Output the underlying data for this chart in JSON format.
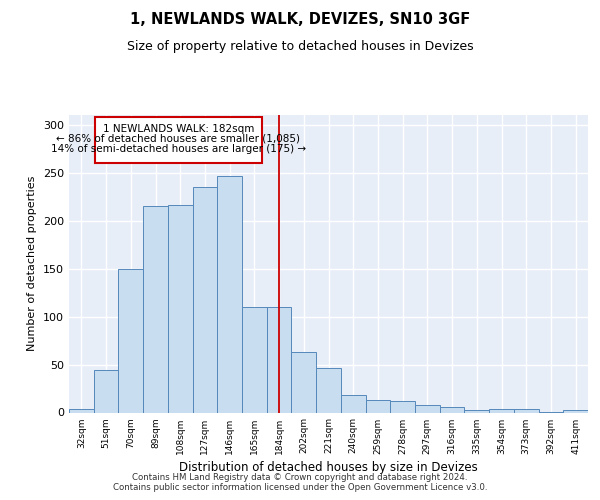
{
  "title": "1, NEWLANDS WALK, DEVIZES, SN10 3GF",
  "subtitle": "Size of property relative to detached houses in Devizes",
  "xlabel": "Distribution of detached houses by size in Devizes",
  "ylabel": "Number of detached properties",
  "bar_color": "#c8ddf0",
  "bar_edge_color": "#5588bb",
  "background_color": "#e8eef8",
  "grid_color": "#d0d8e8",
  "categories": [
    "32sqm",
    "51sqm",
    "70sqm",
    "89sqm",
    "108sqm",
    "127sqm",
    "146sqm",
    "165sqm",
    "184sqm",
    "202sqm",
    "221sqm",
    "240sqm",
    "259sqm",
    "278sqm",
    "297sqm",
    "316sqm",
    "335sqm",
    "354sqm",
    "373sqm",
    "392sqm",
    "411sqm"
  ],
  "values": [
    4,
    44,
    150,
    215,
    216,
    235,
    246,
    110,
    110,
    63,
    46,
    18,
    13,
    12,
    8,
    6,
    3,
    4,
    4,
    1,
    3
  ],
  "vline_position": 8.0,
  "vline_color": "#cc0000",
  "property_label": "1 NEWLANDS WALK: 182sqm",
  "annotation_line1": "← 86% of detached houses are smaller (1,085)",
  "annotation_line2": "14% of semi-detached houses are larger (175) →",
  "box_edge_color": "#cc0000",
  "ylim_max": 310,
  "yticks": [
    0,
    50,
    100,
    150,
    200,
    250,
    300
  ],
  "footer_line1": "Contains HM Land Registry data © Crown copyright and database right 2024.",
  "footer_line2": "Contains public sector information licensed under the Open Government Licence v3.0."
}
